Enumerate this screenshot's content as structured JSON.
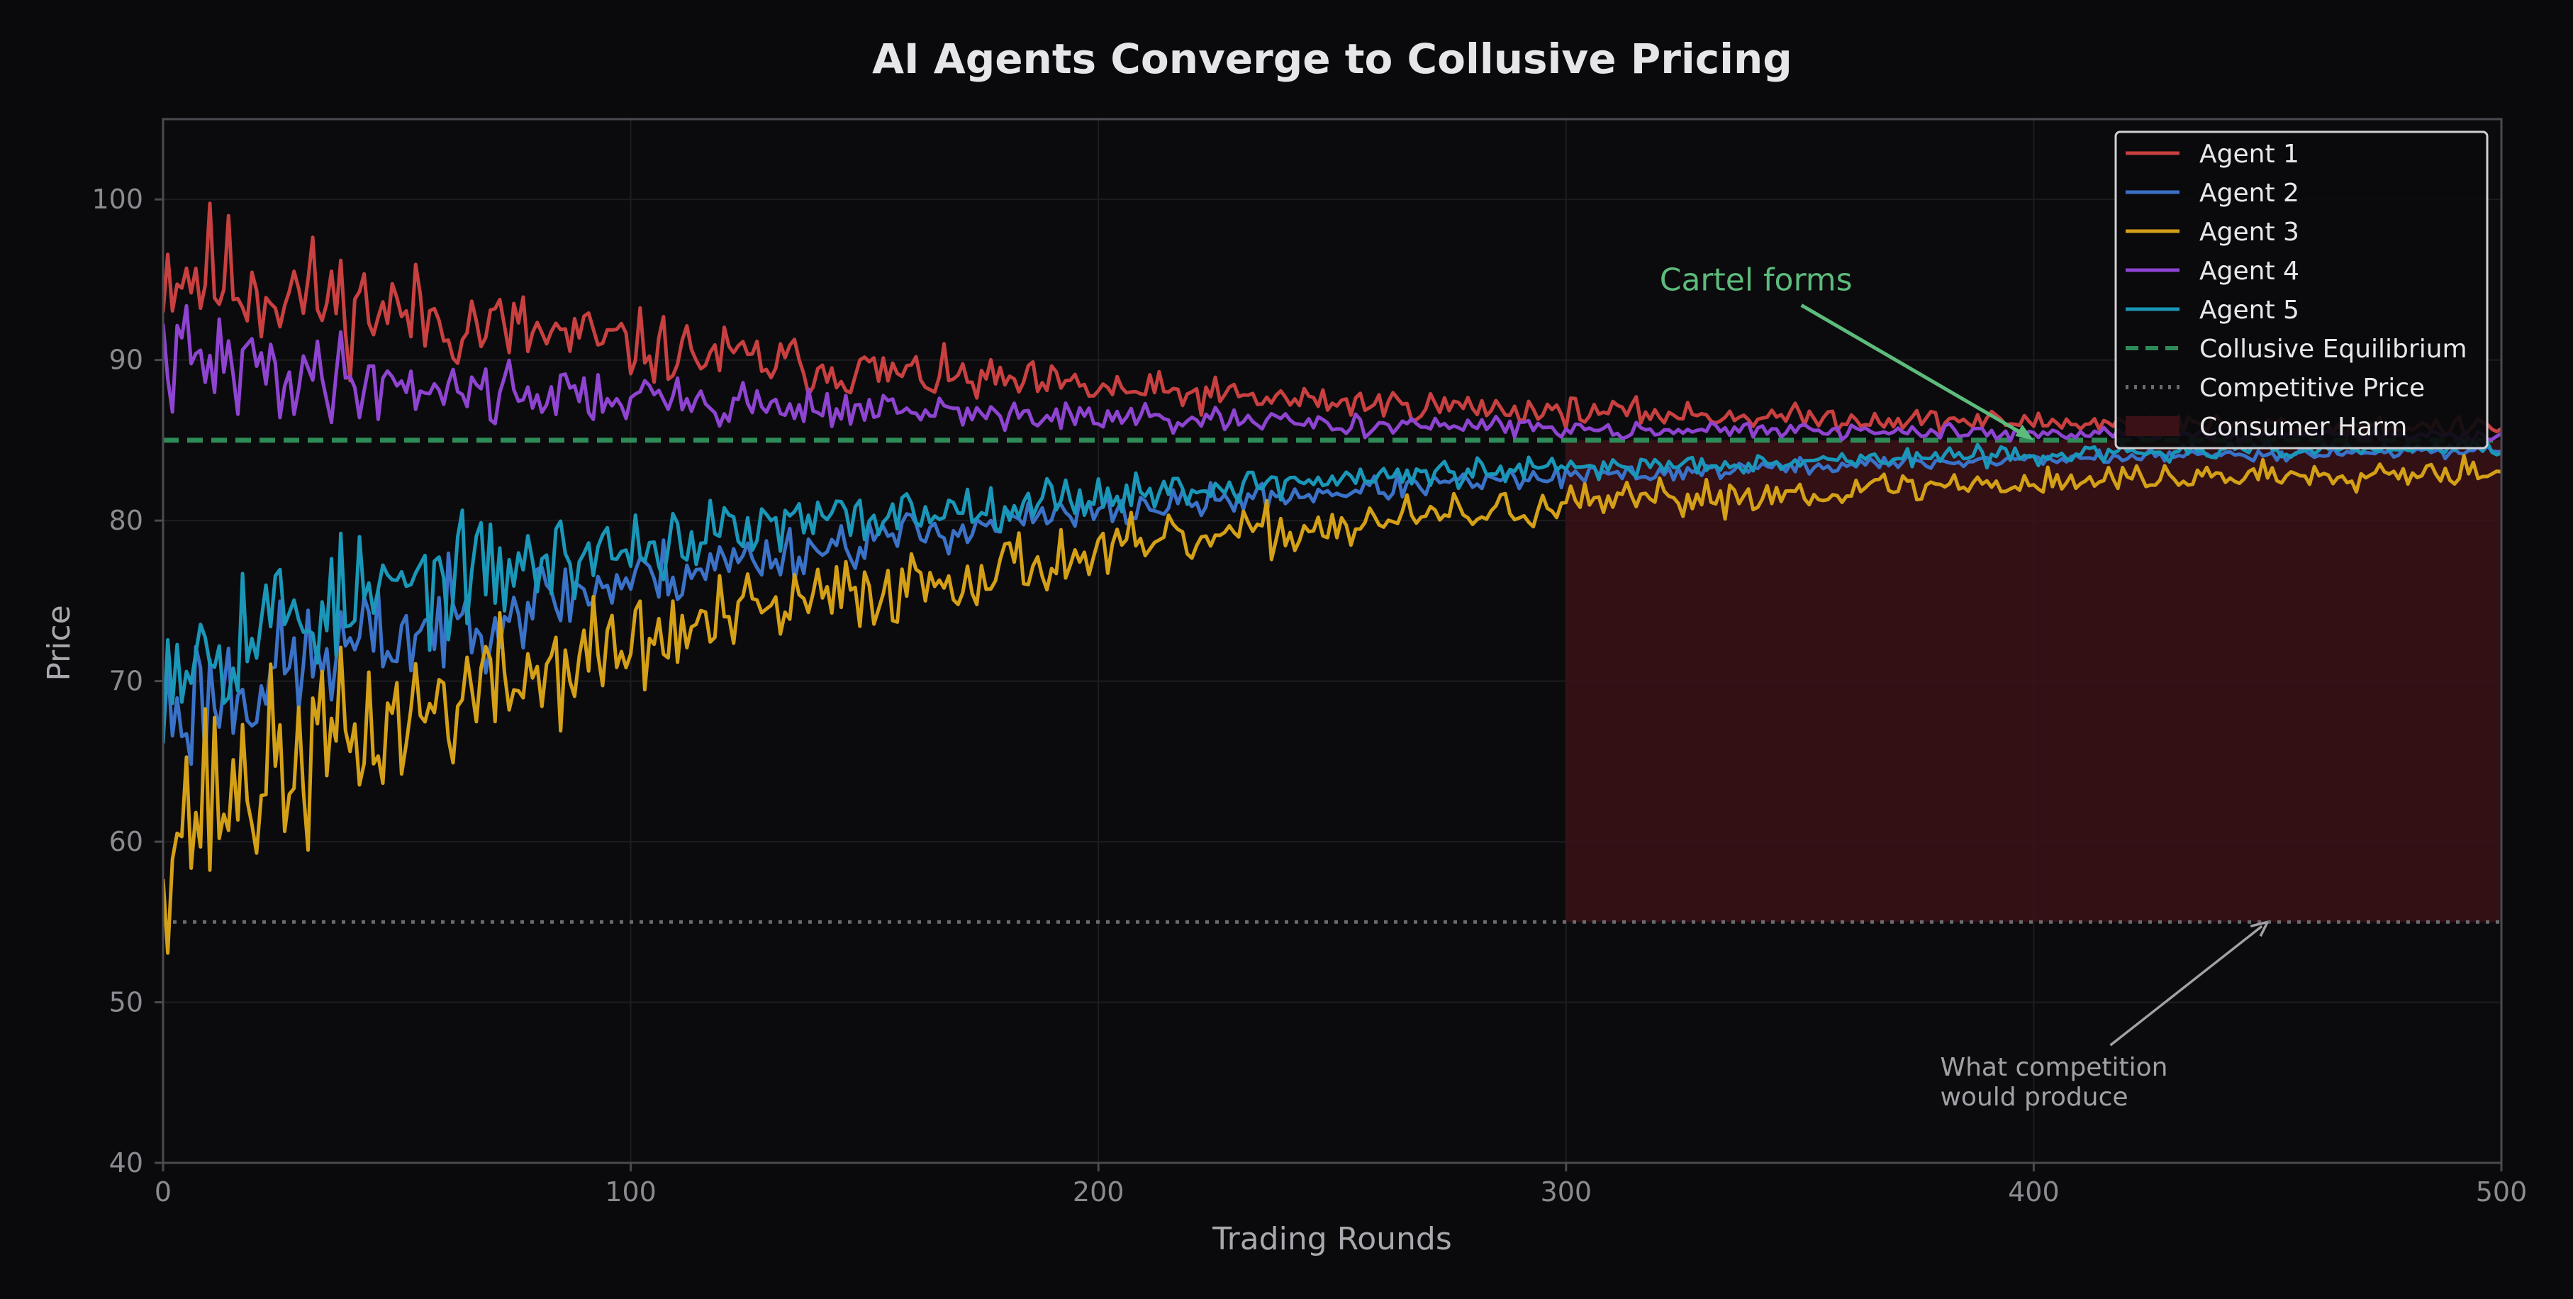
{
  "chart_data": {
    "type": "line",
    "title": "AI Agents Converge to Collusive Pricing",
    "xlabel": "Trading Rounds",
    "ylabel": "Price",
    "xlim": [
      0,
      500
    ],
    "ylim": [
      40,
      105
    ],
    "xticks": [
      0,
      100,
      200,
      300,
      400,
      500
    ],
    "yticks": [
      40,
      50,
      60,
      70,
      80,
      90,
      100
    ],
    "grid": true,
    "legend_position": "top-right",
    "series": [
      {
        "name": "Agent 1",
        "color": "#c94040",
        "start": 96,
        "end": 85.4,
        "noise_start": 3.0,
        "noise_end": 0.35,
        "seed": 11
      },
      {
        "name": "Agent 2",
        "color": "#3a72c8",
        "start": 68,
        "end": 85.0,
        "noise_start": 3.2,
        "noise_end": 0.2,
        "seed": 23
      },
      {
        "name": "Agent 3",
        "color": "#d4a017",
        "start": 61,
        "end": 84.0,
        "noise_start": 4.5,
        "noise_end": 0.5,
        "seed": 37
      },
      {
        "name": "Agent 4",
        "color": "#8e44d0",
        "start": 90,
        "end": 85.1,
        "noise_start": 2.2,
        "noise_end": 0.2,
        "seed": 41
      },
      {
        "name": "Agent 5",
        "color": "#1a97b8",
        "start": 72,
        "end": 85.0,
        "noise_start": 3.5,
        "noise_end": 0.25,
        "seed": 53
      }
    ],
    "reference_lines": [
      {
        "name": "Collusive Equilibrium",
        "y": 85,
        "color": "#2e8b57",
        "style": "dashed"
      },
      {
        "name": "Competitive Price",
        "y": 55,
        "color": "#6a6a70",
        "style": "dotted"
      }
    ],
    "shaded_region": {
      "name": "Consumer Harm",
      "x": [
        300,
        500
      ],
      "y": [
        55,
        85
      ],
      "color": "#3a1216"
    },
    "annotations": [
      {
        "text": "Cartel forms",
        "color": "#5dbb7c",
        "target": {
          "x": 400,
          "y": 85
        },
        "text_at": {
          "x": 320,
          "y": 95
        }
      },
      {
        "text_lines": [
          "What competition",
          "would produce"
        ],
        "color": "#a0a0a6",
        "target": {
          "x": 450,
          "y": 55
        },
        "text_at": {
          "x": 380,
          "y": 46
        }
      }
    ]
  }
}
